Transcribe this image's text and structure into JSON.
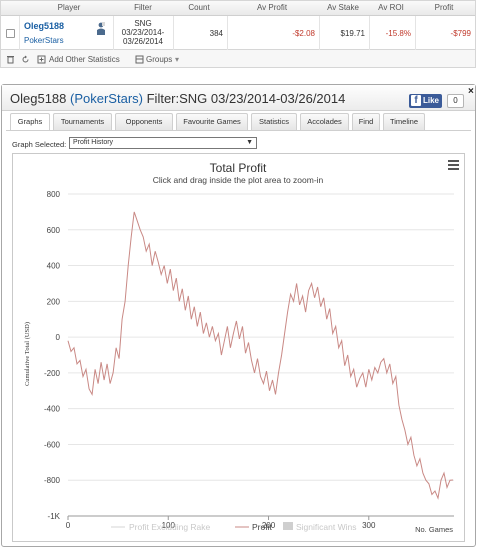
{
  "grid": {
    "headers": [
      "Player",
      "Filter",
      "Count",
      "Av Profit",
      "Av Stake",
      "Av ROI",
      "Profit"
    ],
    "row": {
      "player_name": "Oleg5188",
      "player_site": "PokerStars",
      "filter_line1": "SNG",
      "filter_line2": "03/23/2014-",
      "filter_line3": "03/26/2014",
      "count": "384",
      "av_profit": "-$2.08",
      "av_stake": "$19.71",
      "av_roi": "-15.8%",
      "profit": "-$799"
    },
    "toolbar": {
      "add_stats_label": "Add Other Statistics",
      "groups_label": "Groups"
    }
  },
  "dialog": {
    "title_player": "Oleg5188",
    "title_site": "(PokerStars)",
    "title_filter": "Filter:SNG 03/23/2014-03/26/2014",
    "like_label": "Like",
    "like_count": "0",
    "close_label": "×",
    "tabs": [
      "Graphs",
      "Tournaments",
      "Opponents",
      "Favourite Games",
      "Statistics",
      "Accolades",
      "Find",
      "Timeline"
    ],
    "graph_selected_label": "Graph Selected:",
    "graph_selected_value": "Profit History"
  },
  "chart_data": {
    "type": "line",
    "title": "Total Profit",
    "subtitle": "Click and drag inside the plot area to zoom-in",
    "xlabel": "No. Games",
    "ylabel": "Cumulative Total (USD)",
    "xlim": [
      0,
      385
    ],
    "ylim": [
      -1000,
      800
    ],
    "x_ticks": [
      0,
      100,
      200,
      300
    ],
    "y_tick_labels": [
      "800",
      "600",
      "400",
      "200",
      "0",
      "-200",
      "-400",
      "-600",
      "-800",
      "-1K"
    ],
    "y_tick_values": [
      800,
      600,
      400,
      200,
      0,
      -200,
      -400,
      -600,
      -800,
      -1000
    ],
    "legend": [
      "Profit Excluding Rake",
      "Profit",
      "Significant Wins"
    ],
    "legend_position": "bottom",
    "line_color": "#c98985",
    "series": [
      {
        "name": "Profit",
        "x": [
          0,
          3,
          6,
          9,
          12,
          15,
          18,
          21,
          24,
          27,
          30,
          33,
          36,
          39,
          42,
          45,
          48,
          51,
          54,
          57,
          60,
          63,
          66,
          69,
          72,
          75,
          78,
          81,
          84,
          87,
          90,
          93,
          96,
          99,
          102,
          105,
          108,
          111,
          114,
          117,
          120,
          123,
          126,
          129,
          132,
          135,
          138,
          141,
          144,
          147,
          150,
          153,
          156,
          159,
          162,
          165,
          168,
          171,
          174,
          177,
          180,
          183,
          186,
          189,
          192,
          195,
          198,
          201,
          204,
          207,
          210,
          213,
          216,
          219,
          222,
          225,
          228,
          231,
          234,
          237,
          240,
          243,
          246,
          249,
          252,
          255,
          258,
          261,
          264,
          267,
          270,
          273,
          276,
          279,
          282,
          285,
          288,
          291,
          294,
          297,
          300,
          303,
          306,
          309,
          312,
          315,
          318,
          321,
          324,
          327,
          330,
          333,
          336,
          339,
          342,
          345,
          348,
          351,
          354,
          357,
          360,
          363,
          366,
          369,
          372,
          375,
          378,
          381,
          384
        ],
        "values": [
          -20,
          -80,
          -60,
          -150,
          -130,
          -220,
          -180,
          -290,
          -320,
          -180,
          -260,
          -140,
          -240,
          -150,
          -260,
          -200,
          -60,
          -120,
          100,
          200,
          400,
          560,
          700,
          650,
          600,
          560,
          480,
          520,
          400,
          480,
          420,
          350,
          400,
          300,
          380,
          260,
          330,
          200,
          270,
          150,
          230,
          100,
          170,
          60,
          140,
          20,
          80,
          0,
          60,
          -20,
          20,
          -100,
          -20,
          60,
          -60,
          20,
          90,
          -10,
          60,
          -90,
          -30,
          -130,
          -200,
          -120,
          -220,
          -260,
          -190,
          -300,
          -240,
          -320,
          -200,
          -100,
          20,
          140,
          240,
          200,
          300,
          180,
          230,
          140,
          260,
          300,
          220,
          280,
          170,
          220,
          100,
          160,
          20,
          60,
          -60,
          -20,
          -160,
          -100,
          -220,
          -180,
          -280,
          -230,
          -200,
          -280,
          -180,
          -240,
          -170,
          -200,
          -140,
          -120,
          -200,
          -150,
          -260,
          -220,
          -380,
          -460,
          -520,
          -600,
          -560,
          -660,
          -720,
          -680,
          -760,
          -800,
          -820,
          -880,
          -860,
          -900,
          -800,
          -760,
          -840,
          -800,
          -799
        ]
      }
    ]
  }
}
